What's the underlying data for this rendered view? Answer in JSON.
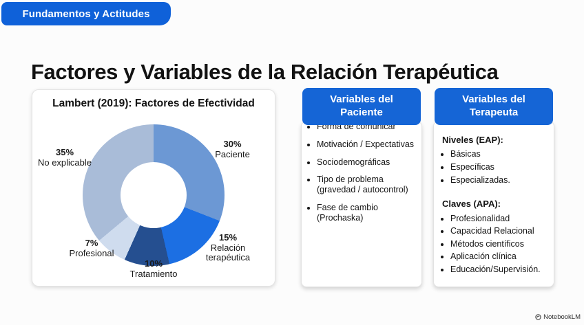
{
  "badge": {
    "label": "Fundamentos y Actitudes"
  },
  "title": "Factores y Variables de la Relación Terapéutica",
  "chart_data": {
    "type": "pie",
    "variant": "donut",
    "title": "Lambert (2019): Factores de Efectividad",
    "unit": "%",
    "start_angle_deg": 0,
    "clockwise": true,
    "hole_ratio": 0.47,
    "segments": [
      {
        "label": "Paciente",
        "value": 30,
        "pct_label": "30%",
        "color": "#6c98d4"
      },
      {
        "label": "Relación terapéutica",
        "value": 15,
        "pct_label": "15%",
        "color": "#1c6fe3"
      },
      {
        "label": "Tratamiento",
        "value": 10,
        "pct_label": "10%",
        "color": "#254f90"
      },
      {
        "label": "Profesional",
        "value": 7,
        "pct_label": "7%",
        "color": "#cfdcee"
      },
      {
        "label": "No explicable",
        "value": 35,
        "pct_label": "35%",
        "color": "#a9bcd8"
      }
    ]
  },
  "patient_panel": {
    "title": "Variables del Paciente",
    "items": [
      "Forma de comunicar",
      "Motivación / Expectativas",
      "Sociodemográficas",
      "Tipo de problema (gravedad / autocontrol)",
      "Fase de cambio (Prochaska)"
    ]
  },
  "therapist_panel": {
    "title": "Variables del Terapeuta",
    "groups": [
      {
        "heading": "Niveles (EAP):",
        "items": [
          "Básicas",
          "Específicas",
          "Especializadas."
        ]
      },
      {
        "heading": "Claves (APA):",
        "items": [
          "Profesionalidad",
          "Capacidad Relacional",
          "Métodos científicos",
          "Aplicación clínica",
          "Educación/Supervisión."
        ]
      }
    ]
  },
  "footer": {
    "brand": "NotebookLM"
  },
  "colors": {
    "accent_blue": "#1565d6",
    "badge_blue": "#0f61d9",
    "card_border": "#e4e4e4",
    "background": "#fcfcfc",
    "text": "#141414"
  }
}
